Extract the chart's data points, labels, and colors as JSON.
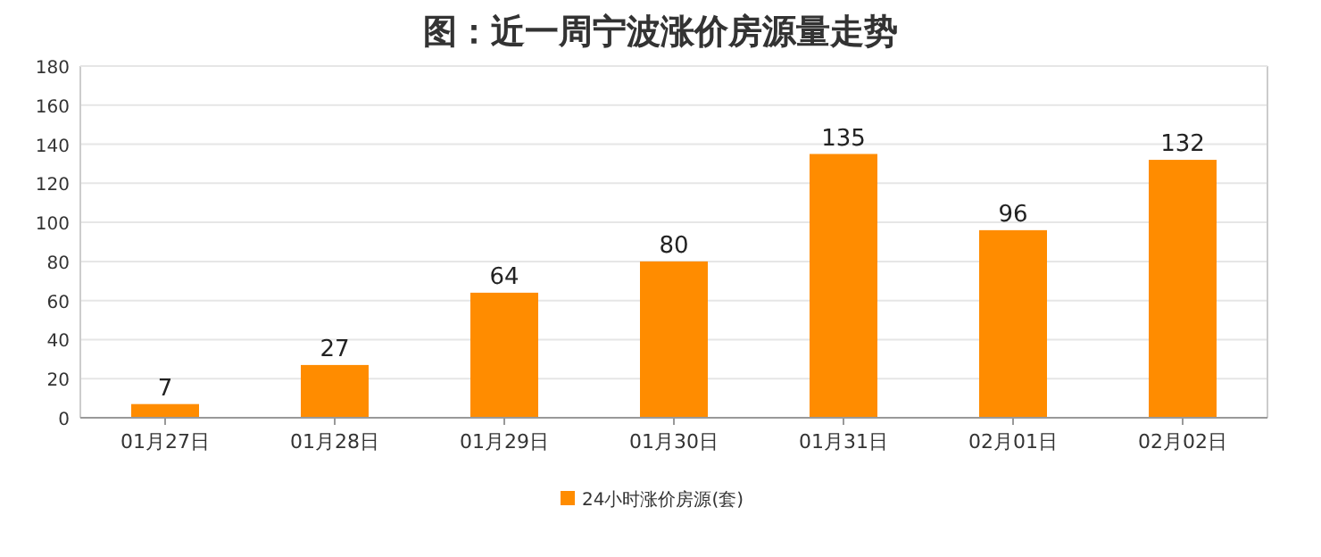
{
  "chart_data": {
    "type": "bar",
    "title": "图：近一周宁波涨价房源量走势",
    "categories": [
      "01月27日",
      "01月28日",
      "01月29日",
      "01月30日",
      "01月31日",
      "02月01日",
      "02月02日"
    ],
    "series": [
      {
        "name": "24小时涨价房源(套)",
        "color": "#ff8c00",
        "values": [
          7,
          27,
          64,
          80,
          135,
          96,
          132
        ]
      }
    ],
    "ylim": [
      0,
      180
    ],
    "yticks": [
      0,
      20,
      40,
      60,
      80,
      100,
      120,
      140,
      160,
      180
    ],
    "grid": "y",
    "legend": "bottom",
    "data_labels": true
  }
}
